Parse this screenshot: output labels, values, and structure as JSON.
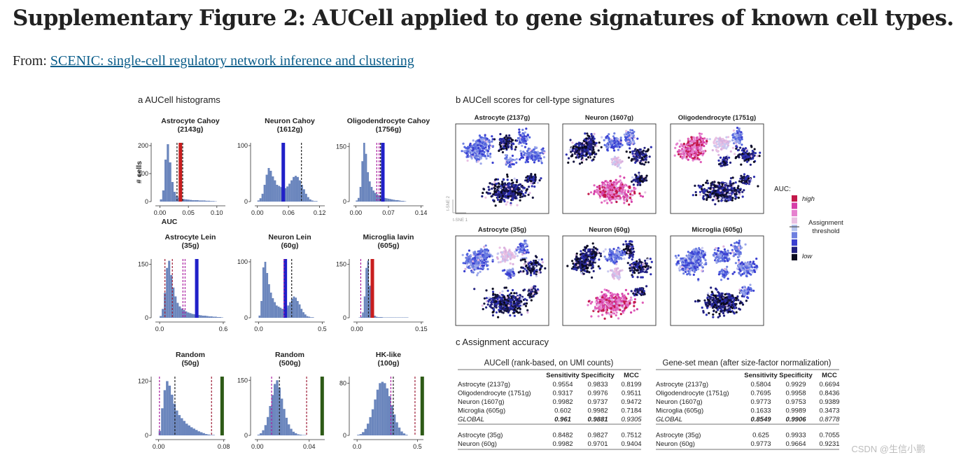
{
  "page": {
    "title": "Supplementary Figure 2: AUCell applied to gene signatures of known cell types.",
    "from_label": "From:",
    "from_link": "SCENIC: single-cell regulatory network inference and clustering",
    "watermark": "CSDN @生信小鹏"
  },
  "panel_a": {
    "heading": "a AUCell histograms",
    "ylabel": "# cells",
    "xlabel": "AUC"
  },
  "panel_b": {
    "heading": "b AUCell scores for cell-type signatures",
    "tsne_y": "t-SNE 2",
    "tsne_x": "t-SNE 1",
    "legend_title": "AUC:",
    "legend_high": "high",
    "legend_low": "low",
    "legend_threshold": [
      "Assignment",
      "threshold"
    ],
    "legend_colors": [
      "#c3184a",
      "#d63fa8",
      "#e681cf",
      "#e9c0e3",
      "#b6c4ee",
      "#6f80e0",
      "#3a3fd0",
      "#22207f",
      "#0a0a1e"
    ]
  },
  "panel_c": {
    "heading": "c Assignment accuracy",
    "headers": [
      "Sensitivity",
      "Specificity",
      "MCC"
    ],
    "left_title": "AUCell (rank-based, on UMI counts)",
    "right_title": "Gene-set mean (after size-factor normalization)",
    "left_rows": [
      [
        "Astrocyte (2137g)",
        "0.9554",
        "0.9833",
        "0.8199"
      ],
      [
        "Oligodendrocyte (1751g)",
        "0.9317",
        "0.9976",
        "0.9511"
      ],
      [
        "Neuron (1607g)",
        "0.9982",
        "0.9737",
        "0.9472"
      ],
      [
        "Microglia (605g)",
        "0.602",
        "0.9982",
        "0.7184"
      ],
      [
        "GLOBAL",
        "0.961",
        "0.9881",
        "0.9305"
      ],
      [
        "Astrocyte (35g)",
        "0.8482",
        "0.9827",
        "0.7512"
      ],
      [
        "Neuron (60g)",
        "0.9982",
        "0.9701",
        "0.9404"
      ]
    ],
    "right_rows": [
      [
        "Astrocyte (2137g)",
        "0.5804",
        "0.9929",
        "0.6694"
      ],
      [
        "Oligodendrocyte (1751g)",
        "0.7695",
        "0.9958",
        "0.8436"
      ],
      [
        "Neuron (1607g)",
        "0.9773",
        "0.9753",
        "0.9389"
      ],
      [
        "Microglia (605g)",
        "0.1633",
        "0.9989",
        "0.3473"
      ],
      [
        "GLOBAL",
        "0.8549",
        "0.9906",
        "0.8778"
      ],
      [
        "Astrocyte (35g)",
        "0.625",
        "0.9933",
        "0.7055"
      ],
      [
        "Neuron (60g)",
        "0.9773",
        "0.9664",
        "0.9231"
      ]
    ]
  },
  "chart_data": [
    {
      "type": "bar",
      "title": "Astrocyte Cahoy",
      "subtitle": "(2143g)",
      "ylabel": "# cells",
      "xlabel": "AUC",
      "xticks": [
        "0.00",
        "0.05",
        "0.10"
      ],
      "yticks": [
        "0",
        "100",
        "200"
      ],
      "xlim": [
        -0.008,
        0.115
      ],
      "ylim": [
        0,
        210
      ],
      "bin_start": 0.0,
      "bin_width": 0.004,
      "values": [
        8,
        40,
        150,
        205,
        140,
        70,
        35,
        20,
        14,
        11,
        9,
        8,
        7,
        6,
        5,
        5,
        5,
        4,
        4,
        4,
        3,
        3,
        2,
        2,
        1
      ],
      "thresholds": [
        {
          "x": 0.036,
          "color": "#c81e1e",
          "style": "thick"
        },
        {
          "x": 0.03,
          "color": "#222222",
          "style": "dashed"
        },
        {
          "x": 0.04,
          "color": "#222222",
          "style": "dashed"
        }
      ]
    },
    {
      "type": "bar",
      "title": "Neuron Cahoy",
      "subtitle": "(1612g)",
      "xticks": [
        "0.00",
        "0.06",
        "0.12"
      ],
      "yticks": [
        "0",
        "100"
      ],
      "xlim": [
        -0.005,
        0.13
      ],
      "ylim": [
        0,
        105
      ],
      "bin_start": 0.0,
      "bin_width": 0.004,
      "values": [
        2,
        6,
        14,
        30,
        48,
        60,
        55,
        45,
        38,
        30,
        28,
        26,
        25,
        24,
        27,
        32,
        38,
        44,
        46,
        44,
        38,
        30,
        22,
        14,
        8,
        4,
        2,
        1,
        1
      ],
      "thresholds": [
        {
          "x": 0.05,
          "color": "#2020c8",
          "style": "thick"
        },
        {
          "x": 0.085,
          "color": "#222222",
          "style": "dashed"
        }
      ]
    },
    {
      "type": "bar",
      "title": "Oligodendrocyte Cahoy",
      "subtitle": "(1756g)",
      "xticks": [
        "0.00",
        "0.07",
        "0.14"
      ],
      "yticks": [
        "0",
        "150"
      ],
      "xlim": [
        -0.005,
        0.145
      ],
      "ylim": [
        0,
        160
      ],
      "bin_start": 0.0,
      "bin_width": 0.004,
      "values": [
        3,
        10,
        40,
        110,
        160,
        130,
        80,
        55,
        40,
        30,
        24,
        20,
        17,
        14,
        12,
        10,
        9,
        8,
        7,
        6,
        5,
        4,
        4,
        3,
        2,
        2,
        1
      ],
      "thresholds": [
        {
          "x": 0.058,
          "color": "#2020c8",
          "style": "thick"
        },
        {
          "x": 0.045,
          "color": "#aa1ea0",
          "style": "dashed"
        },
        {
          "x": 0.05,
          "color": "#aa1ea0",
          "style": "dashed"
        },
        {
          "x": 0.053,
          "color": "#222222",
          "style": "dashed"
        }
      ]
    },
    {
      "type": "bar",
      "title": "Astrocyte Lein",
      "subtitle": "(35g)",
      "xticks": [
        "0.0",
        "0.6"
      ],
      "yticks": [
        "0",
        "150"
      ],
      "xlim": [
        -0.04,
        0.62
      ],
      "ylim": [
        0,
        165
      ],
      "bin_start": 0.0,
      "bin_width": 0.02,
      "values": [
        5,
        25,
        70,
        140,
        160,
        120,
        85,
        60,
        42,
        32,
        26,
        22,
        18,
        15,
        13,
        11,
        10,
        9,
        8,
        7,
        6,
        6,
        5,
        4,
        4,
        3,
        3,
        2,
        2,
        1
      ],
      "thresholds": [
        {
          "x": 0.35,
          "color": "#2020c8",
          "style": "thick"
        },
        {
          "x": 0.05,
          "color": "#9e1e38",
          "style": "dashed"
        },
        {
          "x": 0.12,
          "color": "#9e1e38",
          "style": "dashed"
        },
        {
          "x": 0.22,
          "color": "#aa1ea0",
          "style": "dashed"
        },
        {
          "x": 0.24,
          "color": "#aa1ea0",
          "style": "dashed"
        }
      ]
    },
    {
      "type": "bar",
      "title": "Neuron Lein",
      "subtitle": "(60g)",
      "xticks": [
        "0.0",
        "0.5"
      ],
      "yticks": [
        "0",
        "100"
      ],
      "xlim": [
        -0.03,
        0.52
      ],
      "ylim": [
        0,
        105
      ],
      "bin_start": 0.0,
      "bin_width": 0.015,
      "values": [
        4,
        30,
        90,
        100,
        80,
        60,
        45,
        35,
        28,
        22,
        20,
        18,
        16,
        16,
        18,
        22,
        28,
        34,
        38,
        36,
        30,
        24,
        16,
        10,
        6,
        3,
        2,
        1,
        1
      ],
      "thresholds": [
        {
          "x": 0.21,
          "color": "#2020c8",
          "style": "thick"
        },
        {
          "x": 0.2,
          "color": "#aa1ea0",
          "style": "dashed"
        },
        {
          "x": 0.26,
          "color": "#222222",
          "style": "dashed"
        }
      ]
    },
    {
      "type": "bar",
      "title": "Microglia lavin",
      "subtitle": "(605g)",
      "xticks": [
        "0.00",
        "0.15"
      ],
      "yticks": [
        "0",
        "150"
      ],
      "xlim": [
        -0.008,
        0.155
      ],
      "ylim": [
        0,
        165
      ],
      "bin_start": 0.0,
      "bin_width": 0.004,
      "values": [
        0,
        1,
        3,
        15,
        60,
        140,
        160,
        90,
        40,
        15,
        6,
        3,
        2,
        2,
        2,
        1,
        1,
        1,
        1,
        1,
        1,
        1,
        1,
        1,
        1,
        1,
        1,
        1,
        1,
        1
      ],
      "thresholds": [
        {
          "x": 0.036,
          "color": "#c81e1e",
          "style": "thick"
        },
        {
          "x": 0.009,
          "color": "#aa1ea0",
          "style": "dashed"
        },
        {
          "x": 0.027,
          "color": "#222222",
          "style": "dashed"
        }
      ]
    },
    {
      "type": "bar",
      "title": "Random",
      "subtitle": "(50g)",
      "xticks": [
        "0.00",
        "0.08"
      ],
      "yticks": [
        "0",
        "120"
      ],
      "xlim": [
        -0.004,
        0.082
      ],
      "ylim": [
        0,
        130
      ],
      "bin_start": 0.0,
      "bin_width": 0.003,
      "values": [
        10,
        60,
        100,
        120,
        110,
        90,
        70,
        55,
        45,
        38,
        32,
        26,
        22,
        18,
        15,
        12,
        9,
        7,
        5,
        3,
        2,
        1,
        1
      ],
      "thresholds": [
        {
          "x": 0.078,
          "color": "#2d5a16",
          "style": "thick"
        },
        {
          "x": 0.001,
          "color": "#aa1ea0",
          "style": "dashed"
        },
        {
          "x": 0.02,
          "color": "#222222",
          "style": "dashed"
        },
        {
          "x": 0.065,
          "color": "#9e1e38",
          "style": "dashed"
        }
      ]
    },
    {
      "type": "bar",
      "title": "Random",
      "subtitle": "(500g)",
      "xticks": [
        "0.00",
        "0.04"
      ],
      "yticks": [
        "0",
        "150"
      ],
      "xlim": [
        -0.002,
        0.052
      ],
      "ylim": [
        0,
        160
      ],
      "bin_start": 0.0,
      "bin_width": 0.0018,
      "values": [
        2,
        6,
        14,
        28,
        50,
        80,
        110,
        140,
        150,
        130,
        100,
        72,
        48,
        30,
        18,
        10,
        6,
        3,
        2,
        1,
        1
      ],
      "thresholds": [
        {
          "x": 0.05,
          "color": "#2d5a16",
          "style": "thick"
        },
        {
          "x": 0.011,
          "color": "#aa1ea0",
          "style": "dashed"
        },
        {
          "x": 0.017,
          "color": "#222222",
          "style": "dashed"
        },
        {
          "x": 0.038,
          "color": "#9e1e38",
          "style": "dashed"
        }
      ]
    },
    {
      "type": "bar",
      "title": "HK-like",
      "subtitle": "(100g)",
      "xticks": [
        "0.0",
        "0.5"
      ],
      "yticks": [
        "0",
        "80"
      ],
      "xlim": [
        -0.03,
        0.55
      ],
      "ylim": [
        0,
        90
      ],
      "bin_start": 0.0,
      "bin_width": 0.02,
      "values": [
        1,
        2,
        5,
        10,
        18,
        28,
        40,
        55,
        70,
        80,
        82,
        80,
        72,
        60,
        46,
        32,
        20,
        12,
        6,
        3,
        1
      ],
      "thresholds": [
        {
          "x": 0.54,
          "color": "#2d5a16",
          "style": "thick"
        },
        {
          "x": 0.28,
          "color": "#aa1ea0",
          "style": "dashed"
        },
        {
          "x": 0.3,
          "color": "#222222",
          "style": "dashed"
        },
        {
          "x": 0.48,
          "color": "#9e1e38",
          "style": "dashed"
        }
      ]
    },
    {
      "type": "scatter",
      "title": "Astrocyte (2137g)",
      "scheme": "astro"
    },
    {
      "type": "scatter",
      "title": "Neuron (1607g)",
      "scheme": "neuron"
    },
    {
      "type": "scatter",
      "title": "Oligodendrocyte (1751g)",
      "scheme": "oligo"
    },
    {
      "type": "scatter",
      "title": "Astrocyte (35g)",
      "scheme": "astro2"
    },
    {
      "type": "scatter",
      "title": "Neuron (60g)",
      "scheme": "neuron2"
    },
    {
      "type": "scatter",
      "title": "Microglia (605g)",
      "scheme": "microglia"
    }
  ]
}
